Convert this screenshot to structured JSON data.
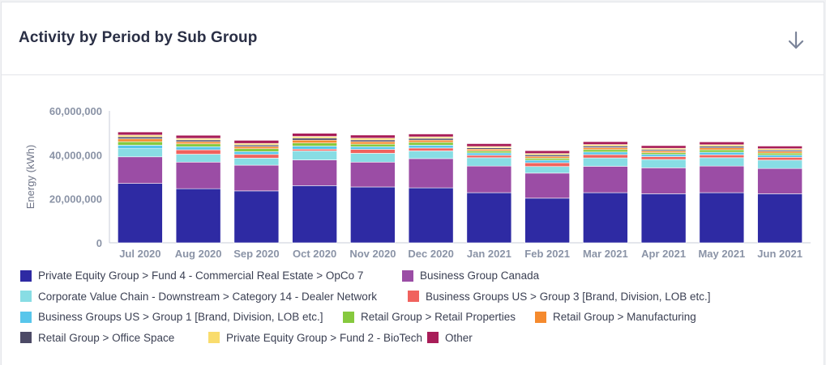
{
  "card": {
    "title": "Activity by Period by Sub Group",
    "download_icon": "arrow-down-icon"
  },
  "chart_data": {
    "type": "bar",
    "stacked": true,
    "ylabel": "Energy (kWh)",
    "xlabel": "",
    "ylim": [
      0,
      60000000
    ],
    "yticks": [
      "0",
      "20,000,000",
      "40,000,000",
      "60,000,000"
    ],
    "categories": [
      "Jul 2020",
      "Aug 2020",
      "Sep 2020",
      "Oct 2020",
      "Nov 2020",
      "Dec 2020",
      "Jan 2021",
      "Feb 2021",
      "Mar 2021",
      "Apr 2021",
      "May 2021",
      "Jun 2021"
    ],
    "grid": false,
    "legend_position": "bottom",
    "series": [
      {
        "name": "Private Equity Group > Fund 4 - Commercial Real Estate > OpCo 7",
        "color": "#2e2aa3",
        "values": [
          27000000,
          24600000,
          23600000,
          26000000,
          25400000,
          25000000,
          22800000,
          20300000,
          22800000,
          22300000,
          22800000,
          22300000
        ]
      },
      {
        "name": "Business Group Canada",
        "color": "#9b4da5",
        "values": [
          12100000,
          12100000,
          11700000,
          11700000,
          11300000,
          13300000,
          12100000,
          11400000,
          12000000,
          11800000,
          12100000,
          11500000
        ]
      },
      {
        "name": "Corporate Value Chain - Downstream > Category 14 - Dealer Network",
        "color": "#88dde4",
        "values": [
          3700000,
          3600000,
          3200000,
          4100000,
          4000000,
          3500000,
          3800000,
          3000000,
          3800000,
          3800000,
          3800000,
          3800000
        ]
      },
      {
        "name": "Business Groups US > Group 3 [Brand, Division, LOB etc.]",
        "color": "#f0625e",
        "values": [
          0,
          2000000,
          1700000,
          800000,
          1800000,
          1300000,
          1100000,
          1700000,
          1500000,
          1300000,
          1300000,
          1300000
        ]
      },
      {
        "name": "Business Groups US > Group 1 [Brand, Division, LOB etc.]",
        "color": "#58c6eb",
        "values": [
          1600000,
          1400000,
          1300000,
          1400000,
          1200000,
          1300000,
          1100000,
          1200000,
          1200000,
          1000000,
          1200000,
          1000000
        ]
      },
      {
        "name": "Retail Group > Retail Properties",
        "color": "#86c93e",
        "values": [
          1600000,
          1300000,
          1300000,
          1400000,
          1200000,
          1300000,
          900000,
          900000,
          1100000,
          800000,
          1100000,
          900000
        ]
      },
      {
        "name": "Retail Group > Manufacturing",
        "color": "#f58a2e",
        "values": [
          1300000,
          1000000,
          1000000,
          1300000,
          1100000,
          1000000,
          800000,
          800000,
          900000,
          800000,
          900000,
          800000
        ]
      },
      {
        "name": "Retail Group > Office Space",
        "color": "#4c4a66",
        "values": [
          900000,
          800000,
          700000,
          900000,
          800000,
          800000,
          600000,
          700000,
          700000,
          600000,
          700000,
          600000
        ]
      },
      {
        "name": "Private Equity Group > Fund 2 - BioTech",
        "color": "#f9dc6d",
        "values": [
          800000,
          700000,
          700000,
          800000,
          800000,
          700000,
          600000,
          600000,
          700000,
          600000,
          700000,
          600000
        ]
      },
      {
        "name": "Other",
        "color": "#a81d58",
        "values": [
          1400000,
          1400000,
          1400000,
          1400000,
          1400000,
          1300000,
          1300000,
          1300000,
          1300000,
          1200000,
          1300000,
          1200000
        ]
      }
    ]
  }
}
